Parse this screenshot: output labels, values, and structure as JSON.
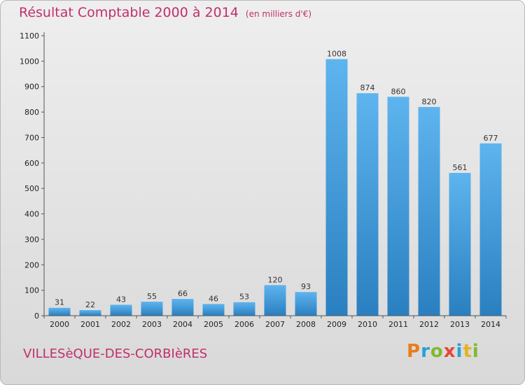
{
  "title": "Résultat Comptable 2000 à 2014",
  "unit": "(en milliers d'€)",
  "commune": "VILLESèQUE-DES-CORBIèRES",
  "logo": {
    "letters": [
      "P",
      "r",
      "o",
      "x",
      "i",
      "t",
      "i"
    ],
    "colors": [
      "#e87d1e",
      "#2a9fd6",
      "#7dbb2f",
      "#e8463a",
      "#2a9fd6",
      "#e8b21e",
      "#7dbb2f"
    ]
  },
  "colors": {
    "bar_light": "#5eb4ee",
    "bar_dark": "#2a7fc0",
    "accent": "#c0306a"
  },
  "chart_data": {
    "type": "bar",
    "categories": [
      "2000",
      "2001",
      "2002",
      "2003",
      "2004",
      "2005",
      "2006",
      "2007",
      "2008",
      "2009",
      "2010",
      "2011",
      "2012",
      "2013",
      "2014"
    ],
    "values": [
      31,
      22,
      43,
      55,
      66,
      46,
      53,
      120,
      93,
      1008,
      874,
      860,
      820,
      561,
      677
    ],
    "ylim": [
      0,
      1100
    ],
    "yticks": [
      0,
      100,
      200,
      300,
      400,
      500,
      600,
      700,
      800,
      900,
      1000,
      1100
    ],
    "grid": false
  }
}
